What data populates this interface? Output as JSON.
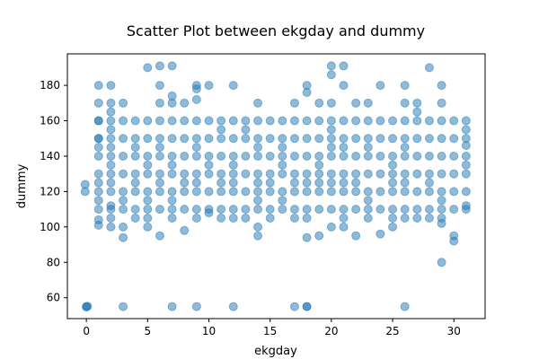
{
  "chart_data": {
    "type": "scatter",
    "title": "Scatter Plot between ekgday and dummy",
    "xlabel": "ekgday",
    "ylabel": "dummy",
    "xlim": [
      -1.55,
      32.55
    ],
    "ylim": [
      48.2,
      197.8
    ],
    "xticks": [
      0,
      5,
      10,
      15,
      20,
      25,
      30
    ],
    "yticks": [
      60,
      80,
      100,
      120,
      140,
      160,
      180
    ],
    "grid": false,
    "legend": "none",
    "marker_color": "#1f77b4",
    "marker_alpha": 0.5,
    "points": [
      [
        -0.1,
        124
      ],
      [
        -0.1,
        120
      ],
      [
        0,
        55
      ],
      [
        0,
        54.8
      ],
      [
        0.1,
        55.2
      ],
      [
        1,
        180
      ],
      [
        1,
        170
      ],
      [
        1,
        160
      ],
      [
        1,
        150
      ],
      [
        1,
        145
      ],
      [
        1,
        140
      ],
      [
        1,
        130
      ],
      [
        1,
        125
      ],
      [
        1,
        120
      ],
      [
        1,
        115
      ],
      [
        1,
        110
      ],
      [
        1,
        104
      ],
      [
        1,
        101
      ],
      [
        1,
        160
      ],
      [
        1,
        150
      ],
      [
        2,
        180
      ],
      [
        2,
        170
      ],
      [
        2,
        165
      ],
      [
        2,
        160
      ],
      [
        2,
        155
      ],
      [
        2,
        150
      ],
      [
        2,
        145
      ],
      [
        2,
        140
      ],
      [
        2,
        135
      ],
      [
        2,
        130
      ],
      [
        2,
        125
      ],
      [
        2,
        120
      ],
      [
        2,
        112
      ],
      [
        2,
        110
      ],
      [
        2,
        105
      ],
      [
        2,
        100
      ],
      [
        3,
        170
      ],
      [
        3,
        160
      ],
      [
        3,
        150
      ],
      [
        3,
        140
      ],
      [
        3,
        130
      ],
      [
        3,
        120
      ],
      [
        3,
        115
      ],
      [
        3,
        110
      ],
      [
        3,
        100
      ],
      [
        3,
        94
      ],
      [
        3,
        55
      ],
      [
        4,
        160
      ],
      [
        4,
        150
      ],
      [
        4,
        145
      ],
      [
        4,
        140
      ],
      [
        4,
        130
      ],
      [
        4,
        125
      ],
      [
        4,
        120
      ],
      [
        4,
        110
      ],
      [
        4,
        105
      ],
      [
        5,
        190
      ],
      [
        5,
        160
      ],
      [
        5,
        150
      ],
      [
        5,
        140
      ],
      [
        5,
        135
      ],
      [
        5,
        130
      ],
      [
        5,
        120
      ],
      [
        5,
        115
      ],
      [
        5,
        110
      ],
      [
        5,
        105
      ],
      [
        5,
        100
      ],
      [
        6,
        191
      ],
      [
        6,
        180
      ],
      [
        6,
        170
      ],
      [
        6,
        160
      ],
      [
        6,
        150
      ],
      [
        6,
        145
      ],
      [
        6,
        140
      ],
      [
        6,
        130
      ],
      [
        6,
        125
      ],
      [
        6,
        120
      ],
      [
        6,
        110
      ],
      [
        6,
        95
      ],
      [
        7,
        191
      ],
      [
        7,
        174
      ],
      [
        7,
        170
      ],
      [
        7,
        160
      ],
      [
        7,
        150
      ],
      [
        7,
        140
      ],
      [
        7,
        135
      ],
      [
        7,
        130
      ],
      [
        7,
        120
      ],
      [
        7,
        115
      ],
      [
        7,
        110
      ],
      [
        7,
        105
      ],
      [
        7,
        55
      ],
      [
        8,
        170
      ],
      [
        8,
        160
      ],
      [
        8,
        150
      ],
      [
        8,
        140
      ],
      [
        8,
        130
      ],
      [
        8,
        125
      ],
      [
        8,
        120
      ],
      [
        8,
        110
      ],
      [
        8,
        98
      ],
      [
        9,
        180
      ],
      [
        9,
        178
      ],
      [
        9,
        172
      ],
      [
        9,
        160
      ],
      [
        9,
        150
      ],
      [
        9,
        145
      ],
      [
        9,
        140
      ],
      [
        9,
        130
      ],
      [
        9,
        125
      ],
      [
        9,
        120
      ],
      [
        9,
        110
      ],
      [
        9,
        105
      ],
      [
        9,
        55
      ],
      [
        10,
        180
      ],
      [
        10,
        160
      ],
      [
        10,
        150
      ],
      [
        10,
        140
      ],
      [
        10,
        135
      ],
      [
        10,
        130
      ],
      [
        10,
        120
      ],
      [
        10,
        110
      ],
      [
        10,
        108
      ],
      [
        11,
        160
      ],
      [
        11,
        155
      ],
      [
        11,
        150
      ],
      [
        11,
        140
      ],
      [
        11,
        130
      ],
      [
        11,
        125
      ],
      [
        11,
        120
      ],
      [
        11,
        110
      ],
      [
        11,
        105
      ],
      [
        12,
        180
      ],
      [
        12,
        160
      ],
      [
        12,
        150
      ],
      [
        12,
        140
      ],
      [
        12,
        135
      ],
      [
        12,
        130
      ],
      [
        12,
        125
      ],
      [
        12,
        120
      ],
      [
        12,
        110
      ],
      [
        12,
        105
      ],
      [
        12,
        55
      ],
      [
        13,
        160
      ],
      [
        13,
        155
      ],
      [
        13,
        150
      ],
      [
        13,
        140
      ],
      [
        13,
        130
      ],
      [
        13,
        120
      ],
      [
        13,
        110
      ],
      [
        13,
        105
      ],
      [
        14,
        170
      ],
      [
        14,
        160
      ],
      [
        14,
        150
      ],
      [
        14,
        145
      ],
      [
        14,
        140
      ],
      [
        14,
        130
      ],
      [
        14,
        125
      ],
      [
        14,
        120
      ],
      [
        14,
        115
      ],
      [
        14,
        110
      ],
      [
        14,
        100
      ],
      [
        14,
        95
      ],
      [
        15,
        160
      ],
      [
        15,
        150
      ],
      [
        15,
        140
      ],
      [
        15,
        130
      ],
      [
        15,
        125
      ],
      [
        15,
        120
      ],
      [
        15,
        110
      ],
      [
        15,
        105
      ],
      [
        16,
        160
      ],
      [
        16,
        150
      ],
      [
        16,
        145
      ],
      [
        16,
        140
      ],
      [
        16,
        135
      ],
      [
        16,
        130
      ],
      [
        16,
        120
      ],
      [
        16,
        115
      ],
      [
        16,
        110
      ],
      [
        17,
        170
      ],
      [
        17,
        160
      ],
      [
        17,
        150
      ],
      [
        17,
        140
      ],
      [
        17,
        130
      ],
      [
        17,
        125
      ],
      [
        17,
        120
      ],
      [
        17,
        110
      ],
      [
        17,
        105
      ],
      [
        17,
        55
      ],
      [
        18,
        180
      ],
      [
        18,
        176
      ],
      [
        18,
        160
      ],
      [
        18,
        150
      ],
      [
        18,
        140
      ],
      [
        18,
        130
      ],
      [
        18,
        125
      ],
      [
        18,
        120
      ],
      [
        18,
        110
      ],
      [
        18,
        105
      ],
      [
        18,
        94
      ],
      [
        18,
        55
      ],
      [
        18,
        55
      ],
      [
        19,
        170
      ],
      [
        19,
        160
      ],
      [
        19,
        150
      ],
      [
        19,
        140
      ],
      [
        19,
        135
      ],
      [
        19,
        130
      ],
      [
        19,
        125
      ],
      [
        19,
        120
      ],
      [
        19,
        110
      ],
      [
        19,
        95
      ],
      [
        20,
        191
      ],
      [
        20,
        186
      ],
      [
        20,
        170
      ],
      [
        20,
        160
      ],
      [
        20,
        155
      ],
      [
        20,
        150
      ],
      [
        20,
        145
      ],
      [
        20,
        140
      ],
      [
        20,
        130
      ],
      [
        20,
        125
      ],
      [
        20,
        120
      ],
      [
        20,
        110
      ],
      [
        20,
        100
      ],
      [
        21,
        191
      ],
      [
        21,
        180
      ],
      [
        21,
        160
      ],
      [
        21,
        150
      ],
      [
        21,
        145
      ],
      [
        21,
        140
      ],
      [
        21,
        130
      ],
      [
        21,
        125
      ],
      [
        21,
        120
      ],
      [
        21,
        110
      ],
      [
        21,
        105
      ],
      [
        21,
        100
      ],
      [
        22,
        170
      ],
      [
        22,
        160
      ],
      [
        22,
        150
      ],
      [
        22,
        140
      ],
      [
        22,
        130
      ],
      [
        22,
        125
      ],
      [
        22,
        120
      ],
      [
        22,
        110
      ],
      [
        22,
        95
      ],
      [
        23,
        170
      ],
      [
        23,
        160
      ],
      [
        23,
        150
      ],
      [
        23,
        145
      ],
      [
        23,
        140
      ],
      [
        23,
        130
      ],
      [
        23,
        120
      ],
      [
        23,
        115
      ],
      [
        23,
        110
      ],
      [
        23,
        105
      ],
      [
        24,
        180
      ],
      [
        24,
        160
      ],
      [
        24,
        150
      ],
      [
        24,
        140
      ],
      [
        24,
        130
      ],
      [
        24,
        120
      ],
      [
        24,
        110
      ],
      [
        24,
        96
      ],
      [
        25,
        160
      ],
      [
        25,
        150
      ],
      [
        25,
        140
      ],
      [
        25,
        135
      ],
      [
        25,
        130
      ],
      [
        25,
        125
      ],
      [
        25,
        120
      ],
      [
        25,
        110
      ],
      [
        25,
        105
      ],
      [
        25,
        100
      ],
      [
        26,
        180
      ],
      [
        26,
        170
      ],
      [
        26,
        160
      ],
      [
        26,
        150
      ],
      [
        26,
        145
      ],
      [
        26,
        140
      ],
      [
        26,
        130
      ],
      [
        26,
        125
      ],
      [
        26,
        120
      ],
      [
        26,
        110
      ],
      [
        26,
        105
      ],
      [
        26,
        55
      ],
      [
        27,
        170
      ],
      [
        27,
        165
      ],
      [
        27,
        160
      ],
      [
        27,
        150
      ],
      [
        27,
        140
      ],
      [
        27,
        130
      ],
      [
        27,
        120
      ],
      [
        27,
        110
      ],
      [
        27,
        105
      ],
      [
        28,
        190
      ],
      [
        28,
        160
      ],
      [
        28,
        150
      ],
      [
        28,
        140
      ],
      [
        28,
        130
      ],
      [
        28,
        125
      ],
      [
        28,
        120
      ],
      [
        28,
        110
      ],
      [
        28,
        105
      ],
      [
        29,
        180
      ],
      [
        29,
        170
      ],
      [
        29,
        160
      ],
      [
        29,
        150
      ],
      [
        29,
        140
      ],
      [
        29,
        130
      ],
      [
        29,
        120
      ],
      [
        29,
        115
      ],
      [
        29,
        110
      ],
      [
        29,
        105
      ],
      [
        29,
        102
      ],
      [
        29,
        80
      ],
      [
        30,
        160
      ],
      [
        30,
        150
      ],
      [
        30,
        140
      ],
      [
        30,
        130
      ],
      [
        30,
        120
      ],
      [
        30,
        110
      ],
      [
        30,
        95
      ],
      [
        30,
        92
      ],
      [
        31,
        160
      ],
      [
        31,
        155
      ],
      [
        31,
        150
      ],
      [
        31,
        146
      ],
      [
        31,
        140
      ],
      [
        31,
        135
      ],
      [
        31,
        130
      ],
      [
        31,
        120
      ],
      [
        31,
        112
      ],
      [
        31,
        110
      ]
    ]
  }
}
